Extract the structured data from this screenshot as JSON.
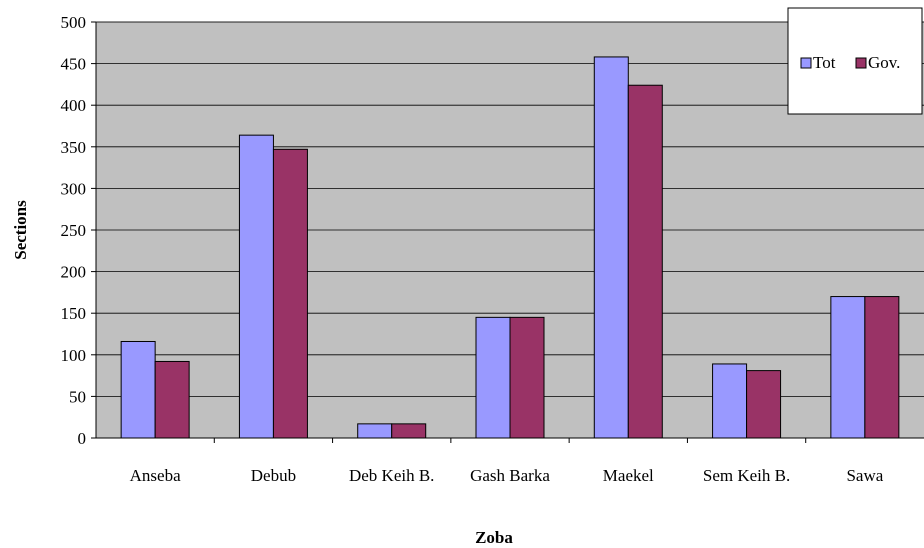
{
  "chart_data": {
    "type": "bar",
    "title": "",
    "xlabel": "Zoba",
    "ylabel": "Sections",
    "ylim": [
      0,
      500
    ],
    "yticks": [
      0,
      50,
      100,
      150,
      200,
      250,
      300,
      350,
      400,
      450,
      500
    ],
    "grid": true,
    "legend_position": "top-right",
    "plot_background": "#c0c0c0",
    "categories": [
      "Anseba",
      "Debub",
      "Deb Keih B.",
      "Gash Barka",
      "Maekel",
      "Sem Keih B.",
      "Sawa"
    ],
    "series": [
      {
        "name": "Tot",
        "color": "#9999ff",
        "values": [
          116,
          364,
          17,
          145,
          458,
          89,
          170
        ]
      },
      {
        "name": "Gov.",
        "color": "#993366",
        "values": [
          92,
          347,
          17,
          145,
          424,
          81,
          170
        ]
      }
    ]
  }
}
